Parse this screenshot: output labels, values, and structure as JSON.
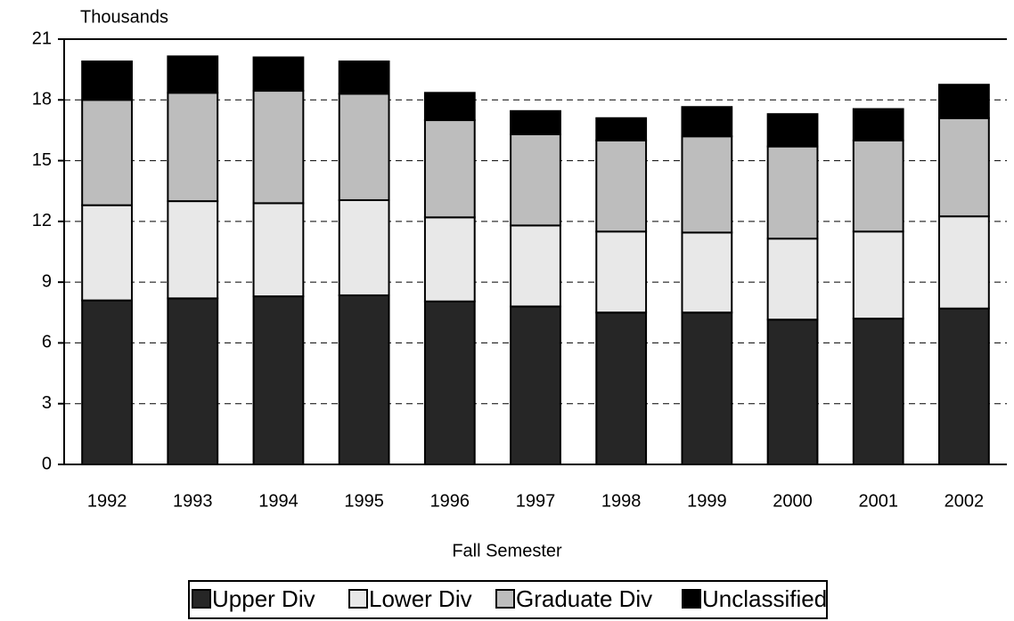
{
  "chart_data": {
    "type": "stacked_bar",
    "ylabel": "Thousands",
    "xlabel": "Fall Semester",
    "categories": [
      "1992",
      "1993",
      "1994",
      "1995",
      "1996",
      "1997",
      "1998",
      "1999",
      "2000",
      "2001",
      "2002"
    ],
    "series": [
      {
        "name": "Upper Div",
        "color": "#262626",
        "values": [
          8.1,
          8.2,
          8.3,
          8.35,
          8.05,
          7.8,
          7.5,
          7.5,
          7.15,
          7.2,
          7.7
        ]
      },
      {
        "name": "Lower Div",
        "color": "#e8e8e8",
        "values": [
          4.7,
          4.8,
          4.6,
          4.7,
          4.15,
          4.0,
          4.0,
          3.95,
          4.0,
          4.3,
          4.55
        ]
      },
      {
        "name": "Graduate Div",
        "color": "#bdbdbd",
        "values": [
          5.2,
          5.35,
          5.55,
          5.25,
          4.8,
          4.5,
          4.5,
          4.75,
          4.55,
          4.5,
          4.85
        ]
      },
      {
        "name": "Unclassified",
        "color": "#000000",
        "values": [
          1.9,
          1.8,
          1.65,
          1.6,
          1.35,
          1.15,
          1.1,
          1.45,
          1.6,
          1.55,
          1.65
        ]
      }
    ],
    "ylim": [
      0,
      21
    ],
    "yticks": [
      0,
      3,
      6,
      9,
      12,
      15,
      18,
      21
    ],
    "grid": true,
    "legend": "bottom"
  }
}
